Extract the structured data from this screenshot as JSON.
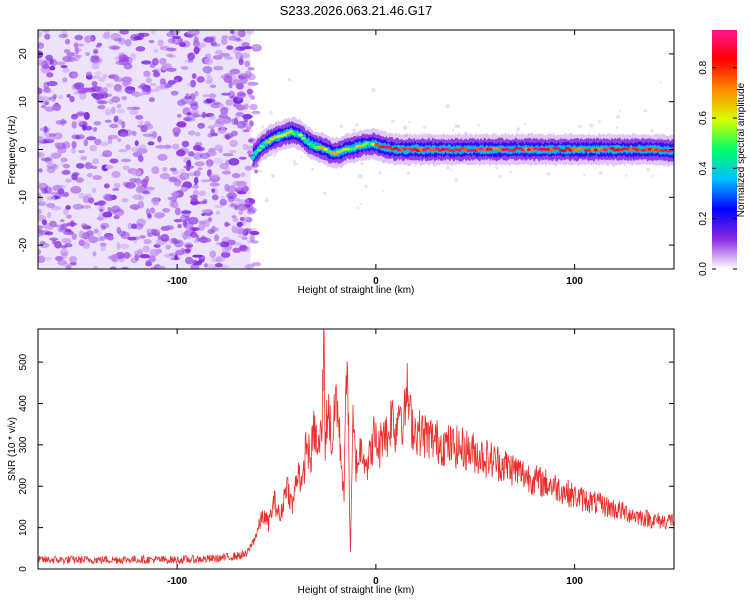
{
  "chart_data": [
    {
      "type": "heatmap",
      "title": "S233.2026.063.21.46.G17",
      "xlabel": "Height of straight line (km)",
      "ylabel": "Frequency (Hz)",
      "xlim": [
        -170,
        150
      ],
      "ylim": [
        -25,
        25
      ],
      "xticks": [
        "-100",
        "0",
        "100"
      ],
      "yticks": [
        "-20",
        "-10",
        "0",
        "10",
        "20"
      ],
      "noise_region_x": [
        -170,
        -63
      ],
      "ridge_track": {
        "x": [
          -62,
          -58,
          -54,
          -50,
          -46,
          -42,
          -38,
          -34,
          -30,
          -26,
          -22,
          -18,
          -14,
          -10,
          -6,
          -2,
          2,
          6,
          10,
          20,
          40,
          60,
          80,
          100,
          120,
          140,
          150
        ],
        "freq_hz": [
          -1.5,
          0.5,
          1.8,
          2.6,
          3.2,
          3.6,
          3.0,
          1.5,
          0.6,
          0.2,
          -0.8,
          -0.6,
          0.2,
          0.5,
          1.0,
          1.2,
          0.8,
          0.3,
          0.0,
          0.0,
          0.0,
          0.0,
          0.0,
          0.0,
          0.0,
          0.0,
          -0.3
        ]
      },
      "colorbar": {
        "label": "Normalized spectral amplitude",
        "range": [
          0,
          0.95
        ],
        "ticks": [
          "0.0",
          "0.2",
          "0.4",
          "0.6",
          "0.8"
        ],
        "colors": [
          "#ffffff",
          "#8a2be2",
          "#0000ff",
          "#00bfff",
          "#00ff66",
          "#d8ff00",
          "#ff8c00",
          "#ff0000",
          "#ff1493"
        ]
      }
    },
    {
      "type": "line",
      "title": "",
      "xlabel": "Height of straight line (km)",
      "ylabel": "SNR (10 * v/v)",
      "xlim": [
        -170,
        150
      ],
      "ylim": [
        0,
        580
      ],
      "xticks": [
        "-100",
        "0",
        "100"
      ],
      "yticks": [
        "0",
        "100",
        "200",
        "300",
        "400",
        "500"
      ],
      "color": "#e8302c",
      "series": [
        {
          "name": "SNR",
          "x": [
            -170,
            -150,
            -120,
            -100,
            -80,
            -65,
            -60,
            -57,
            -54,
            -51,
            -48,
            -45,
            -42,
            -39,
            -37,
            -35,
            -33,
            -31,
            -29,
            -27,
            -26.2,
            -25.5,
            -24,
            -22,
            -20,
            -18,
            -16,
            -14.5,
            -13.5,
            -12.8,
            -11.5,
            -10,
            -7,
            -4,
            -1,
            2,
            4,
            6,
            8,
            10,
            12,
            14,
            15.5,
            17,
            19,
            22,
            26,
            30,
            35,
            40,
            45,
            50,
            60,
            70,
            80,
            90,
            100,
            110,
            120,
            130,
            140,
            145,
            150
          ],
          "values": [
            22,
            22,
            23,
            22,
            25,
            35,
            85,
            130,
            110,
            165,
            120,
            210,
            150,
            250,
            190,
            310,
            260,
            340,
            280,
            350,
            580,
            310,
            400,
            290,
            430,
            300,
            180,
            570,
            240,
            30,
            350,
            250,
            300,
            250,
            320,
            290,
            350,
            310,
            380,
            330,
            410,
            340,
            440,
            370,
            340,
            330,
            320,
            310,
            300,
            295,
            290,
            280,
            260,
            240,
            215,
            200,
            175,
            160,
            145,
            130,
            118,
            115,
            120
          ]
        }
      ]
    }
  ]
}
